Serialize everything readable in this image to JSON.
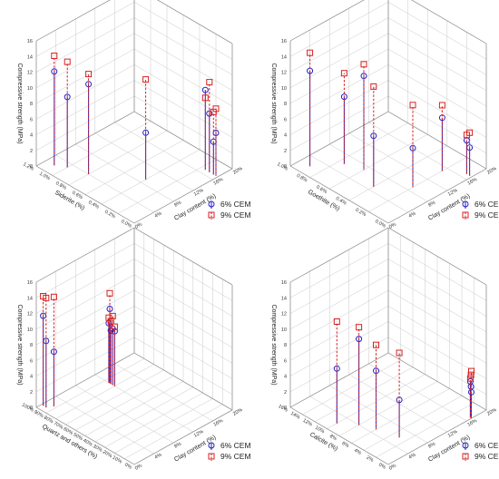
{
  "chart_data": [
    {
      "type": "scatter",
      "projection": "3d",
      "xlabel": "Clay content (%)",
      "ylabel": "Siderite (%)",
      "zlabel": "Compressive strength (MPa)",
      "x_ticks": [
        "0%",
        "4%",
        "8%",
        "12%",
        "16%",
        "20%"
      ],
      "y_ticks": [
        "0.0%",
        "0.2%",
        "0.4%",
        "0.6%",
        "0.8%",
        "1.0%",
        "1.2%"
      ],
      "z_ticks": [
        "0",
        "2",
        "4",
        "6",
        "8",
        "10",
        "12",
        "14",
        "16"
      ],
      "xlim": [
        0,
        0.2
      ],
      "ylim": [
        0,
        0.012
      ],
      "zlim": [
        0,
        16
      ],
      "legend_position": "bottom-right",
      "series": [
        {
          "name": "6% CEM",
          "color": "#2020c8",
          "marker": "circle",
          "x": [
            0.02,
            0.03,
            0.04,
            0.09,
            0.17,
            0.17,
            0.17,
            0.17
          ],
          "y": [
            0.011,
            0.01,
            0.008,
            0.004,
            0.001,
            0.0015,
            0.0005,
            0.0002
          ],
          "z": [
            12.0,
            9.0,
            11.5,
            6.0,
            7.5,
            10.2,
            4.2,
            5.5
          ]
        },
        {
          "name": "9% CEM",
          "color": "#d82020",
          "marker": "square",
          "x": [
            0.02,
            0.03,
            0.04,
            0.09,
            0.17,
            0.17,
            0.17,
            0.17
          ],
          "y": [
            0.011,
            0.01,
            0.008,
            0.004,
            0.001,
            0.0015,
            0.0005,
            0.0002
          ],
          "z": [
            14.0,
            13.5,
            12.8,
            12.8,
            11.5,
            9.2,
            8.0,
            8.6
          ]
        }
      ]
    },
    {
      "type": "scatter",
      "projection": "3d",
      "xlabel": "Clay content (%)",
      "ylabel": "Goethite (%)",
      "zlabel": "Compressive strength (MPa)",
      "x_ticks": [
        "0%",
        "4%",
        "8%",
        "12%",
        "16%",
        "20%"
      ],
      "y_ticks": [
        "0.0%",
        "0.2%",
        "0.4%",
        "0.6%",
        "0.8%",
        "1.0%"
      ],
      "z_ticks": [
        "0",
        "2",
        "4",
        "6",
        "8",
        "10",
        "12",
        "14",
        "16"
      ],
      "xlim": [
        0,
        0.2
      ],
      "ylim": [
        0,
        0.01
      ],
      "zlim": [
        0,
        16
      ],
      "legend_position": "bottom-right",
      "series": [
        {
          "name": "6% CEM",
          "color": "#2020c8",
          "marker": "circle",
          "x": [
            0.02,
            0.05,
            0.07,
            0.09,
            0.06,
            0.15,
            0.17,
            0.17
          ],
          "y": [
            0.009,
            0.004,
            0.006,
            0.002,
            0.0075,
            0.002,
            0.0002,
            0.0005
          ],
          "z": [
            12.2,
            6.5,
            12.0,
            5.0,
            8.6,
            6.8,
            3.6,
            4.3
          ]
        },
        {
          "name": "9% CEM",
          "color": "#d82020",
          "marker": "square",
          "x": [
            0.02,
            0.05,
            0.07,
            0.09,
            0.06,
            0.15,
            0.17,
            0.17
          ],
          "y": [
            0.009,
            0.004,
            0.006,
            0.002,
            0.0075,
            0.002,
            0.0002,
            0.0005
          ],
          "z": [
            14.5,
            12.8,
            13.5,
            10.5,
            11.6,
            8.4,
            5.5,
            5.0
          ]
        }
      ]
    },
    {
      "type": "scatter",
      "projection": "3d",
      "xlabel": "Clay content (%)",
      "ylabel": "Quartz and others (%)",
      "zlabel": "Compressive strength (MPa)",
      "x_ticks": [
        "0%",
        "4%",
        "8%",
        "12%",
        "16%",
        "20%"
      ],
      "y_ticks": [
        "0%",
        "10%",
        "20%",
        "30%",
        "40%",
        "50%",
        "60%",
        "70%",
        "80%",
        "90%",
        "100%"
      ],
      "z_ticks": [
        "0",
        "2",
        "4",
        "6",
        "8",
        "10",
        "12",
        "14",
        "16"
      ],
      "xlim": [
        0,
        0.2
      ],
      "ylim": [
        0,
        1
      ],
      "zlim": [
        0,
        16
      ],
      "legend_position": "bottom-right",
      "series": [
        {
          "name": "6% CEM",
          "color": "#2020c8",
          "marker": "circle",
          "x": [
            0.01,
            0.01,
            0.02,
            0.12,
            0.12,
            0.12,
            0.12,
            0.12
          ],
          "y": [
            0.98,
            0.95,
            0.92,
            0.85,
            0.82,
            0.84,
            0.86,
            0.8
          ],
          "z": [
            11.5,
            8.5,
            7.0,
            9.5,
            7.2,
            6.8,
            7.6,
            7.0
          ]
        },
        {
          "name": "9% CEM",
          "color": "#d82020",
          "marker": "square",
          "x": [
            0.01,
            0.01,
            0.02,
            0.12,
            0.12,
            0.12,
            0.12,
            0.12
          ],
          "y": [
            0.98,
            0.95,
            0.92,
            0.85,
            0.82,
            0.84,
            0.86,
            0.8
          ],
          "z": [
            14.0,
            14.0,
            14.0,
            11.5,
            8.8,
            8.0,
            8.3,
            7.6
          ]
        }
      ]
    },
    {
      "type": "scatter",
      "projection": "3d",
      "xlabel": "Clay content (%)",
      "ylabel": "Calcite (%)",
      "zlabel": "Compressive strength (MPa)",
      "x_ticks": [
        "0%",
        "4%",
        "8%",
        "12%",
        "16%",
        "20%"
      ],
      "y_ticks": [
        "0%",
        "2%",
        "4%",
        "6%",
        "8%",
        "10%",
        "12%",
        "14%",
        "16%"
      ],
      "z_ticks": [
        "0",
        "2",
        "4",
        "6",
        "8",
        "10",
        "12",
        "14",
        "16"
      ],
      "xlim": [
        0,
        0.2
      ],
      "ylim": [
        0,
        0.16
      ],
      "zlim": [
        0,
        16
      ],
      "legend_position": "bottom-right",
      "series": [
        {
          "name": "6% CEM",
          "color": "#2020c8",
          "marker": "circle",
          "x": [
            0.02,
            0.04,
            0.05,
            0.06,
            0.17,
            0.17,
            0.17
          ],
          "y": [
            0.1,
            0.08,
            0.06,
            0.03,
            0.001,
            0.002,
            0.0005
          ],
          "z": [
            7.0,
            11.0,
            7.5,
            4.8,
            4.0,
            4.6,
            3.3
          ]
        },
        {
          "name": "9% CEM",
          "color": "#d82020",
          "marker": "square",
          "x": [
            0.02,
            0.04,
            0.05,
            0.06,
            0.17,
            0.17,
            0.17
          ],
          "y": [
            0.1,
            0.08,
            0.06,
            0.03,
            0.001,
            0.002,
            0.0005
          ],
          "z": [
            13.0,
            12.5,
            10.8,
            10.8,
            5.5,
            5.0,
            6.0
          ]
        }
      ]
    }
  ]
}
